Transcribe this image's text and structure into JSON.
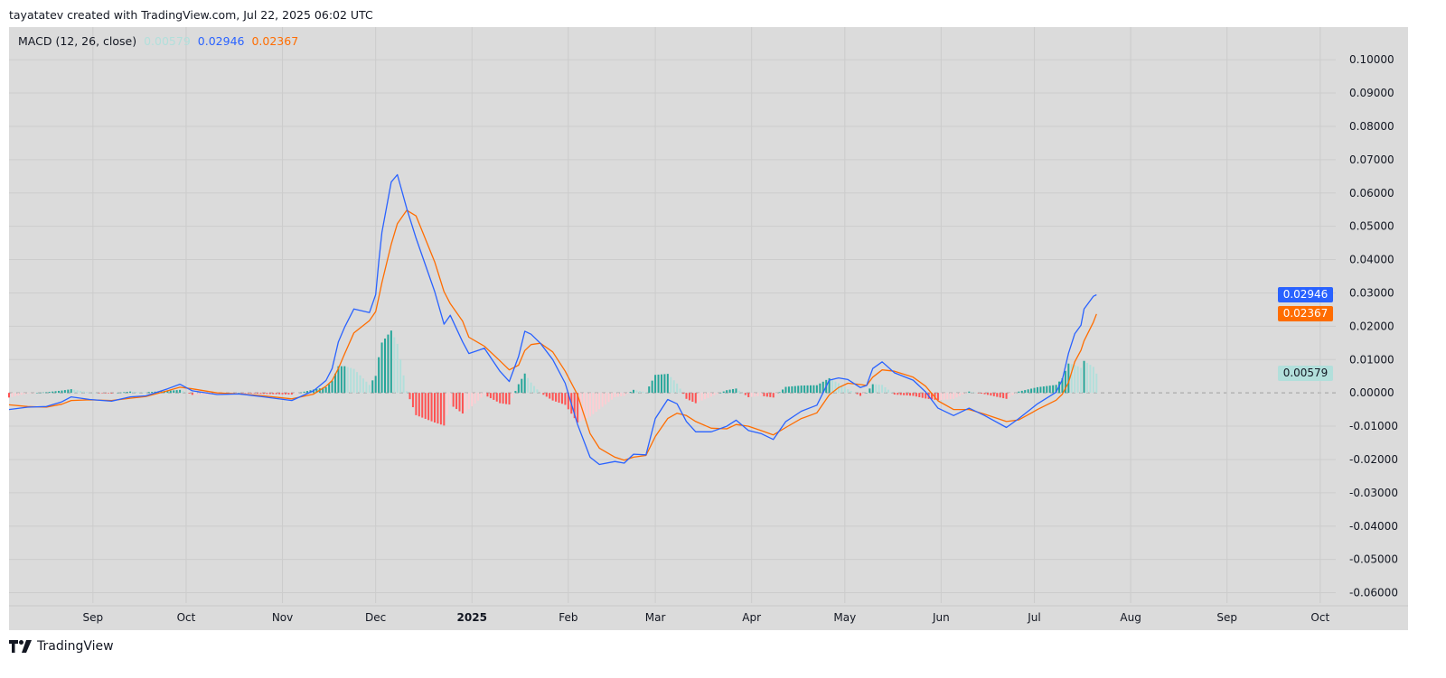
{
  "header": {
    "attribution": "tayatatev created with TradingView.com, Jul 22, 2025 06:02 UTC"
  },
  "legend": {
    "indicator": "MACD (12, 26, close)",
    "histogram_value": "0.00579",
    "macd_value": "0.02946",
    "signal_value": "0.02367"
  },
  "footer": {
    "brand": "TradingView"
  },
  "colors": {
    "macd": "#2962ff",
    "signal": "#ff6d00",
    "hist_pos_grow": "#26a69a",
    "hist_pos_fall": "#b2dfdb",
    "hist_neg_grow": "#ff5252",
    "hist_neg_fall": "#ffcdd2",
    "background": "#dbdbdb",
    "grid": "#cccccc"
  },
  "chart_data": {
    "type": "line",
    "title": "MACD (12, 26, close)",
    "xlim": [
      "2024-08-05",
      "2025-10-06"
    ],
    "ylim": [
      -0.0631,
      0.1098
    ],
    "grid": true,
    "y_ticks": [
      "0.10000",
      "0.09000",
      "0.08000",
      "0.07000",
      "0.06000",
      "0.05000",
      "0.04000",
      "0.03000",
      "0.02000",
      "0.01000",
      "0.00000",
      "-0.01000",
      "-0.02000",
      "-0.03000",
      "-0.04000",
      "-0.05000",
      "-0.06000"
    ],
    "x_ticks": [
      {
        "date": "2024-09-01",
        "label": "Sep"
      },
      {
        "date": "2024-10-01",
        "label": "Oct"
      },
      {
        "date": "2024-11-01",
        "label": "Nov"
      },
      {
        "date": "2024-12-01",
        "label": "Dec"
      },
      {
        "date": "2025-01-01",
        "label": "2025",
        "bold": true
      },
      {
        "date": "2025-02-01",
        "label": "Feb"
      },
      {
        "date": "2025-03-01",
        "label": "Mar"
      },
      {
        "date": "2025-04-01",
        "label": "Apr"
      },
      {
        "date": "2025-05-01",
        "label": "May"
      },
      {
        "date": "2025-06-01",
        "label": "Jun"
      },
      {
        "date": "2025-07-01",
        "label": "Jul"
      },
      {
        "date": "2025-08-01",
        "label": "Aug"
      },
      {
        "date": "2025-09-01",
        "label": "Sep"
      },
      {
        "date": "2025-10-01",
        "label": "Oct"
      }
    ],
    "last_value_labels": [
      {
        "series": "macd",
        "value": 0.02946,
        "text": "0.02946"
      },
      {
        "series": "signal",
        "value": 0.02367,
        "text": "0.02367"
      },
      {
        "series": "histogram",
        "value": 0.00579,
        "text": "0.00579"
      }
    ],
    "dates": [
      "2024-08-05",
      "2024-08-11",
      "2024-08-17",
      "2024-08-22",
      "2024-08-25",
      "2024-08-31",
      "2024-09-07",
      "2024-09-13",
      "2024-09-18",
      "2024-09-25",
      "2024-09-29",
      "2024-10-03",
      "2024-10-11",
      "2024-10-18",
      "2024-10-26",
      "2024-11-04",
      "2024-11-11",
      "2024-11-15",
      "2024-11-17",
      "2024-11-19",
      "2024-11-21",
      "2024-11-24",
      "2024-11-29",
      "2024-12-01",
      "2024-12-02",
      "2024-12-03",
      "2024-12-06",
      "2024-12-08",
      "2024-12-11",
      "2024-12-14",
      "2024-12-20",
      "2024-12-23",
      "2024-12-25",
      "2024-12-29",
      "2024-12-31",
      "2025-01-05",
      "2025-01-10",
      "2025-01-13",
      "2025-01-16",
      "2025-01-18",
      "2025-01-20",
      "2025-01-23",
      "2025-01-27",
      "2025-01-31",
      "2025-02-04",
      "2025-02-08",
      "2025-02-11",
      "2025-02-16",
      "2025-02-19",
      "2025-02-22",
      "2025-02-26",
      "2025-03-01",
      "2025-03-05",
      "2025-03-08",
      "2025-03-11",
      "2025-03-14",
      "2025-03-19",
      "2025-03-24",
      "2025-03-27",
      "2025-03-31",
      "2025-04-04",
      "2025-04-08",
      "2025-04-12",
      "2025-04-17",
      "2025-04-22",
      "2025-04-26",
      "2025-04-29",
      "2025-05-02",
      "2025-05-06",
      "2025-05-08",
      "2025-05-10",
      "2025-05-13",
      "2025-05-17",
      "2025-05-23",
      "2025-05-27",
      "2025-05-31",
      "2025-06-05",
      "2025-06-10",
      "2025-06-15",
      "2025-06-22",
      "2025-06-26",
      "2025-07-02",
      "2025-07-08",
      "2025-07-10",
      "2025-07-12",
      "2025-07-14",
      "2025-07-16",
      "2025-07-17",
      "2025-07-20",
      "2025-07-21"
    ],
    "series": [
      {
        "key": "macd",
        "values": [
          -0.005,
          -0.0043,
          -0.0041,
          -0.0027,
          -0.0012,
          -0.002,
          -0.0025,
          -0.0012,
          -0.0009,
          0.0012,
          0.0026,
          0.0006,
          -0.0005,
          -0.0003,
          -0.0012,
          -0.0023,
          0.0006,
          0.0037,
          0.0073,
          0.0153,
          0.0197,
          0.0252,
          0.0241,
          0.0295,
          0.0393,
          0.0482,
          0.0633,
          0.0655,
          0.0553,
          0.0464,
          0.0304,
          0.0206,
          0.0233,
          0.0153,
          0.0118,
          0.0134,
          0.0065,
          0.0034,
          0.0109,
          0.0185,
          0.0176,
          0.0149,
          0.01,
          0.0029,
          -0.0095,
          -0.0193,
          -0.0215,
          -0.0206,
          -0.0211,
          -0.0184,
          -0.0186,
          -0.0077,
          -0.002,
          -0.0033,
          -0.0086,
          -0.0117,
          -0.0117,
          -0.01,
          -0.0082,
          -0.0113,
          -0.0122,
          -0.014,
          -0.0086,
          -0.0055,
          -0.0037,
          0.0038,
          0.0045,
          0.004,
          0.0016,
          0.0022,
          0.0073,
          0.0093,
          0.006,
          0.0038,
          0.0003,
          -0.0046,
          -0.0068,
          -0.0046,
          -0.0068,
          -0.0104,
          -0.0077,
          -0.0033,
          0.0002,
          0.004,
          0.0119,
          0.0177,
          0.0203,
          0.0252,
          0.029,
          0.02946
        ]
      },
      {
        "key": "signal",
        "values": [
          -0.0036,
          -0.0041,
          -0.0043,
          -0.0034,
          -0.0023,
          -0.0021,
          -0.0023,
          -0.0016,
          -0.0011,
          0.0006,
          0.0017,
          0.0012,
          0.0,
          -0.0003,
          -0.0009,
          -0.0018,
          -0.0004,
          0.002,
          0.0037,
          0.0073,
          0.0117,
          0.018,
          0.0217,
          0.0244,
          0.0286,
          0.0331,
          0.0446,
          0.0508,
          0.0548,
          0.0531,
          0.0393,
          0.0304,
          0.0268,
          0.0215,
          0.0167,
          0.014,
          0.0096,
          0.0069,
          0.0083,
          0.0127,
          0.0145,
          0.0149,
          0.0123,
          0.0065,
          -0.0006,
          -0.0122,
          -0.0166,
          -0.0193,
          -0.0202,
          -0.0193,
          -0.0188,
          -0.0131,
          -0.0077,
          -0.0061,
          -0.0068,
          -0.0086,
          -0.0106,
          -0.0108,
          -0.0095,
          -0.01,
          -0.0113,
          -0.0126,
          -0.0104,
          -0.0077,
          -0.006,
          -0.0006,
          0.0016,
          0.0029,
          0.0025,
          0.0022,
          0.0047,
          0.0069,
          0.0065,
          0.0047,
          0.002,
          -0.0024,
          -0.005,
          -0.005,
          -0.0064,
          -0.0086,
          -0.0081,
          -0.005,
          -0.0022,
          -0.0004,
          0.0031,
          0.0093,
          0.0128,
          0.0156,
          0.0212,
          0.02367
        ]
      },
      {
        "key": "histogram",
        "values": [
          -0.0014,
          -0.0002,
          0.0002,
          0.0007,
          0.0011,
          0.0001,
          -0.0002,
          0.0004,
          0.0002,
          0.0006,
          0.0009,
          -0.0006,
          -0.0005,
          0.0,
          -0.0003,
          -0.0005,
          0.001,
          0.0017,
          0.0036,
          0.008,
          0.008,
          0.0072,
          0.0024,
          0.0051,
          0.0107,
          0.0151,
          0.0187,
          0.0147,
          0.0005,
          -0.0067,
          -0.0089,
          -0.0098,
          -0.0035,
          -0.0062,
          -0.0049,
          -0.0006,
          -0.0031,
          -0.0035,
          0.0026,
          0.0058,
          0.0031,
          0.0,
          -0.0023,
          -0.0036,
          -0.0089,
          -0.0071,
          -0.0049,
          -0.0013,
          -0.0009,
          0.0009,
          0.0002,
          0.0054,
          0.0057,
          0.0028,
          -0.0018,
          -0.0031,
          -0.0011,
          0.0008,
          0.0013,
          -0.0013,
          -0.0009,
          -0.0014,
          0.0018,
          0.0022,
          0.0023,
          0.0044,
          0.0029,
          0.0011,
          -0.0009,
          0.0,
          0.0026,
          0.0024,
          -0.0005,
          -0.0009,
          -0.0017,
          -0.0022,
          -0.0018,
          0.0004,
          -0.0004,
          -0.0018,
          0.0004,
          0.0017,
          0.0024,
          0.0044,
          0.0088,
          0.0084,
          0.0075,
          0.0096,
          0.0078,
          0.00579
        ]
      }
    ]
  }
}
